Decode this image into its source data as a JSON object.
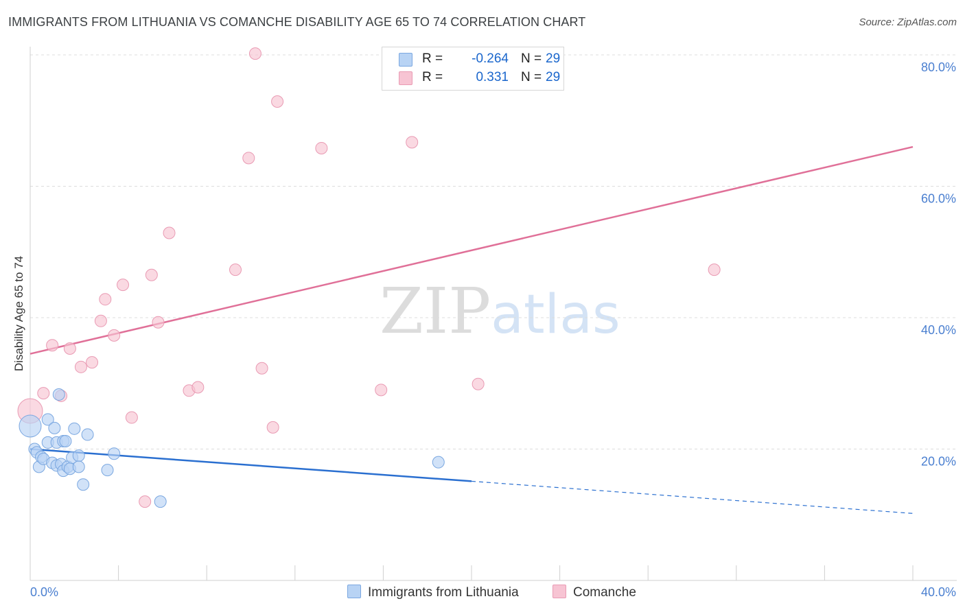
{
  "header": {
    "title": "IMMIGRANTS FROM LITHUANIA VS COMANCHE DISABILITY AGE 65 TO 74 CORRELATION CHART",
    "source": "Source: ZipAtlas.com"
  },
  "watermark": {
    "zip": "ZIP",
    "atlas": "atlas"
  },
  "legend": {
    "rows": [
      {
        "r_label": "R =",
        "r_value": "-0.264",
        "n_label": "N =",
        "n_value": "29"
      },
      {
        "r_label": "R =",
        "r_value": "0.331",
        "n_label": "N =",
        "n_value": "29"
      }
    ]
  },
  "bottom_legend": {
    "series1": "Immigrants from Lithuania",
    "series2": "Comanche"
  },
  "axes": {
    "ylabel": "Disability Age 65 to 74",
    "xtick_left": "0.0%",
    "xtick_right": "40.0%",
    "yticks": [
      "80.0%",
      "60.0%",
      "40.0%",
      "20.0%"
    ]
  },
  "colors": {
    "blue_fill": "#b8d3f4",
    "blue_stroke": "#7aa7e0",
    "blue_line": "#2a6fd0",
    "pink_fill": "#f7c4d3",
    "pink_stroke": "#e99ab3",
    "pink_line": "#e07098"
  },
  "chart_data": {
    "type": "scatter",
    "title": "IMMIGRANTS FROM LITHUANIA VS COMANCHE DISABILITY AGE 65 TO 74 CORRELATION CHART",
    "xlabel": "",
    "ylabel": "Disability Age 65 to 74",
    "xlim": [
      0,
      40
    ],
    "ylim": [
      0,
      80
    ],
    "grid": true,
    "series": [
      {
        "name": "Immigrants from Lithuania",
        "points": [
          [
            0.0,
            23.5
          ],
          [
            0.2,
            20.0
          ],
          [
            0.3,
            19.5
          ],
          [
            0.4,
            17.3
          ],
          [
            0.5,
            18.8
          ],
          [
            0.6,
            18.5
          ],
          [
            0.8,
            24.5
          ],
          [
            0.8,
            21.0
          ],
          [
            1.0,
            17.9
          ],
          [
            1.1,
            23.2
          ],
          [
            1.2,
            21.0
          ],
          [
            1.2,
            17.5
          ],
          [
            1.3,
            28.3
          ],
          [
            1.4,
            17.7
          ],
          [
            1.5,
            21.2
          ],
          [
            1.5,
            16.7
          ],
          [
            1.6,
            21.2
          ],
          [
            1.7,
            17.3
          ],
          [
            1.8,
            17.0
          ],
          [
            1.9,
            18.7
          ],
          [
            2.0,
            23.1
          ],
          [
            2.2,
            19.0
          ],
          [
            2.2,
            17.3
          ],
          [
            2.4,
            14.6
          ],
          [
            2.6,
            22.2
          ],
          [
            3.5,
            16.8
          ],
          [
            3.8,
            19.3
          ],
          [
            5.9,
            12.0
          ],
          [
            18.5,
            18.0
          ]
        ],
        "trend": {
          "x": [
            0,
            20
          ],
          "y": [
            20.0,
            15.1
          ]
        },
        "trend_extension": {
          "x": [
            20,
            40
          ],
          "y": [
            15.1,
            10.2
          ]
        }
      },
      {
        "name": "Comanche",
        "points": [
          [
            0.0,
            25.8
          ],
          [
            0.6,
            28.5
          ],
          [
            1.0,
            35.8
          ],
          [
            1.4,
            28.1
          ],
          [
            1.8,
            35.3
          ],
          [
            2.3,
            32.5
          ],
          [
            2.8,
            33.2
          ],
          [
            3.2,
            39.5
          ],
          [
            3.4,
            42.8
          ],
          [
            3.8,
            37.3
          ],
          [
            4.2,
            45.0
          ],
          [
            4.6,
            24.8
          ],
          [
            5.2,
            12.0
          ],
          [
            5.5,
            46.5
          ],
          [
            5.8,
            39.3
          ],
          [
            6.3,
            52.9
          ],
          [
            7.2,
            28.9
          ],
          [
            7.6,
            29.4
          ],
          [
            9.3,
            47.3
          ],
          [
            9.9,
            64.3
          ],
          [
            10.2,
            80.2
          ],
          [
            10.5,
            32.3
          ],
          [
            11.0,
            23.3
          ],
          [
            11.2,
            72.9
          ],
          [
            13.2,
            65.8
          ],
          [
            15.9,
            29.0
          ],
          [
            17.3,
            66.7
          ],
          [
            20.3,
            29.9
          ],
          [
            31.0,
            47.3
          ]
        ],
        "trend": {
          "x": [
            0,
            40
          ],
          "y": [
            34.5,
            66.0
          ]
        }
      }
    ]
  }
}
